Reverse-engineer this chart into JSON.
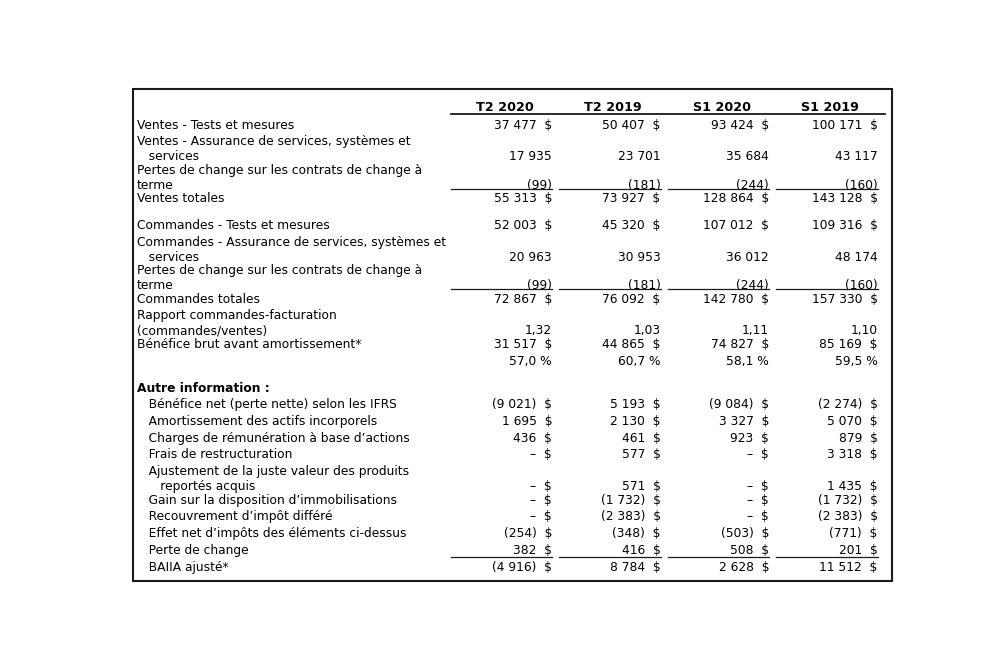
{
  "bg_color": "#ffffff",
  "text_color": "#000000",
  "font_size": 8.8,
  "header_font_size": 9.2,
  "figsize": [
    10.0,
    6.59
  ],
  "dpi": 100,
  "col_header_labels": [
    "T2 2020",
    "T2 2019",
    "S1 2020",
    "S1 2019"
  ],
  "col_header_bold": true,
  "rows": [
    {
      "type": "data",
      "label": "Ventes - Tests et mesures",
      "label2": null,
      "bold": false,
      "underline_vals": false,
      "vals": [
        "37 477  $",
        "50 407  $",
        "93 424  $",
        "100 171  $"
      ]
    },
    {
      "type": "data",
      "label": "Ventes - Assurance de services, systèmes et",
      "label2": "   services",
      "bold": false,
      "underline_vals": false,
      "vals": [
        "17 935",
        "23 701",
        "35 684",
        "43 117"
      ]
    },
    {
      "type": "data",
      "label": "Pertes de change sur les contrats de change à",
      "label2": "terme",
      "bold": false,
      "underline_vals": true,
      "vals": [
        "(99)",
        "(181)",
        "(244)",
        "(160)"
      ]
    },
    {
      "type": "data",
      "label": "Ventes totales",
      "label2": null,
      "bold": false,
      "underline_vals": false,
      "vals": [
        "55 313  $",
        "73 927  $",
        "128 864  $",
        "143 128  $"
      ]
    },
    {
      "type": "spacer"
    },
    {
      "type": "data",
      "label": "Commandes - Tests et mesures",
      "label2": null,
      "bold": false,
      "underline_vals": false,
      "vals": [
        "52 003  $",
        "45 320  $",
        "107 012  $",
        "109 316  $"
      ]
    },
    {
      "type": "data",
      "label": "Commandes - Assurance de services, systèmes et",
      "label2": "   services",
      "bold": false,
      "underline_vals": false,
      "vals": [
        "20 963",
        "30 953",
        "36 012",
        "48 174"
      ]
    },
    {
      "type": "data",
      "label": "Pertes de change sur les contrats de change à",
      "label2": "terme",
      "bold": false,
      "underline_vals": true,
      "vals": [
        "(99)",
        "(181)",
        "(244)",
        "(160)"
      ]
    },
    {
      "type": "data",
      "label": "Commandes totales",
      "label2": null,
      "bold": false,
      "underline_vals": false,
      "vals": [
        "72 867  $",
        "76 092  $",
        "142 780  $",
        "157 330  $"
      ]
    },
    {
      "type": "data",
      "label": "Rapport commandes-facturation",
      "label2": "(commandes/ventes)",
      "bold": false,
      "underline_vals": false,
      "vals": [
        "1,32",
        "1,03",
        "1,11",
        "1,10"
      ]
    },
    {
      "type": "data",
      "label": "Bénéfice brut avant amortissement*",
      "label2": null,
      "bold": false,
      "underline_vals": false,
      "vals": [
        "31 517  $",
        "44 865  $",
        "74 827  $",
        "85 169  $"
      ]
    },
    {
      "type": "data",
      "label": null,
      "label2": null,
      "bold": false,
      "underline_vals": false,
      "vals": [
        "57,0 %",
        "60,7 %",
        "58,1 %",
        "59,5 %"
      ]
    },
    {
      "type": "spacer"
    },
    {
      "type": "data",
      "label": "Autre information :",
      "label2": null,
      "bold": true,
      "underline_vals": false,
      "vals": [
        "",
        "",
        "",
        ""
      ]
    },
    {
      "type": "data",
      "label": "   Bénéfice net (perte nette) selon les IFRS",
      "label2": null,
      "bold": false,
      "underline_vals": false,
      "vals": [
        "(9 021)  $",
        "5 193  $",
        "(9 084)  $",
        "(2 274)  $"
      ]
    },
    {
      "type": "data",
      "label": "   Amortissement des actifs incorporels",
      "label2": null,
      "bold": false,
      "underline_vals": false,
      "vals": [
        "1 695  $",
        "2 130  $",
        "3 327  $",
        "5 070  $"
      ]
    },
    {
      "type": "data",
      "label": "   Charges de rémunération à base d’actions",
      "label2": null,
      "bold": false,
      "underline_vals": false,
      "vals": [
        "436  $",
        "461  $",
        "923  $",
        "879  $"
      ]
    },
    {
      "type": "data",
      "label": "   Frais de restructuration",
      "label2": null,
      "bold": false,
      "underline_vals": false,
      "vals": [
        "–  $",
        "577  $",
        "–  $",
        "3 318  $"
      ]
    },
    {
      "type": "data",
      "label": "   Ajustement de la juste valeur des produits",
      "label2": "      reportés acquis",
      "bold": false,
      "underline_vals": false,
      "vals": [
        "–  $",
        "571  $",
        "–  $",
        "1 435  $"
      ]
    },
    {
      "type": "data",
      "label": "   Gain sur la disposition d’immobilisations",
      "label2": null,
      "bold": false,
      "underline_vals": false,
      "vals": [
        "–  $",
        "(1 732)  $",
        "–  $",
        "(1 732)  $"
      ]
    },
    {
      "type": "data",
      "label": "   Recouvrement d’impôt différé",
      "label2": null,
      "bold": false,
      "underline_vals": false,
      "vals": [
        "–  $",
        "(2 383)  $",
        "–  $",
        "(2 383)  $"
      ]
    },
    {
      "type": "data",
      "label": "   Effet net d’impôts des éléments ci-dessus",
      "label2": null,
      "bold": false,
      "underline_vals": false,
      "vals": [
        "(254)  $",
        "(348)  $",
        "(503)  $",
        "(771)  $"
      ]
    },
    {
      "type": "data",
      "label": "   Perte de change",
      "label2": null,
      "bold": false,
      "underline_vals": true,
      "vals": [
        "382  $",
        "416  $",
        "508  $",
        "201  $"
      ]
    },
    {
      "type": "data",
      "label": "   BAIIA ajusté*",
      "label2": null,
      "bold": false,
      "underline_vals": false,
      "vals": [
        "(4 916)  $",
        "8 784  $",
        "2 628  $",
        "11 512  $"
      ]
    }
  ]
}
